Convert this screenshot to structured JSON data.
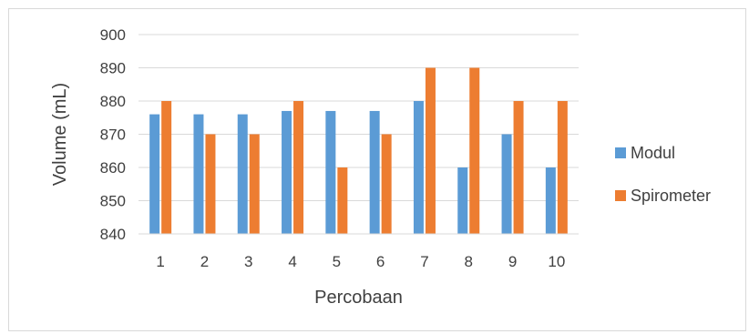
{
  "chart_data": {
    "type": "bar",
    "title": "",
    "xlabel": "Percobaan",
    "ylabel": "Volume (mL)",
    "ylim": [
      840,
      900
    ],
    "yticks": [
      "840",
      "850",
      "860",
      "870",
      "880",
      "890",
      "900"
    ],
    "grid": true,
    "legend_position": "right",
    "categories": [
      "1",
      "2",
      "3",
      "4",
      "5",
      "6",
      "7",
      "8",
      "9",
      "10"
    ],
    "series": [
      {
        "name": "Modul",
        "color": "#5b9bd5",
        "values": [
          876,
          876,
          876,
          877,
          877,
          877,
          880,
          860,
          870,
          860
        ]
      },
      {
        "name": "Spirometer",
        "color": "#ed7d31",
        "values": [
          880,
          870,
          870,
          880,
          860,
          870,
          890,
          890,
          880,
          880
        ]
      }
    ]
  }
}
